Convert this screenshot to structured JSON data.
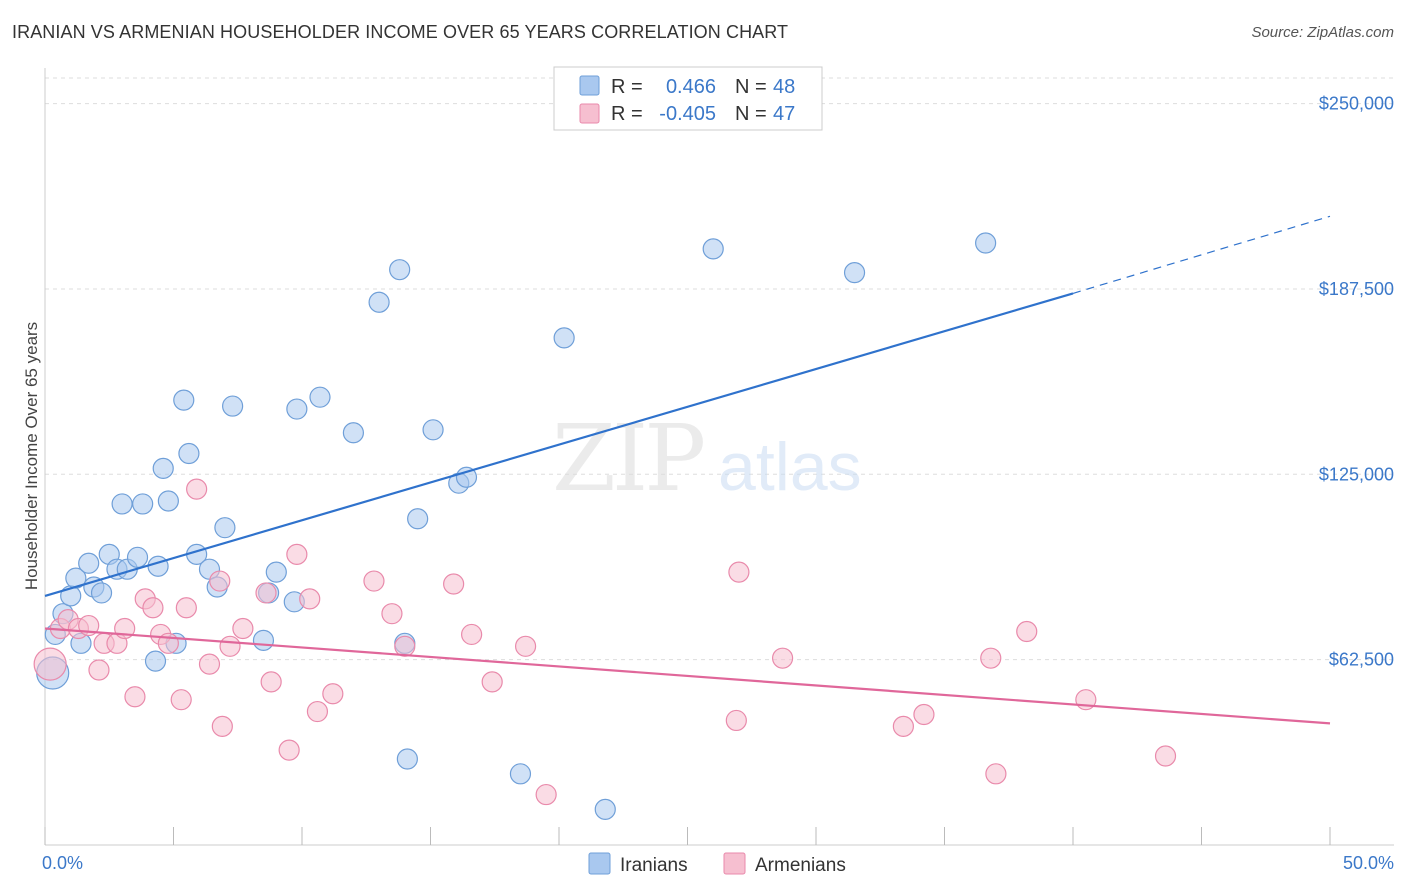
{
  "header": {
    "title": "IRANIAN VS ARMENIAN HOUSEHOLDER INCOME OVER 65 YEARS CORRELATION CHART",
    "source": "Source: ZipAtlas.com"
  },
  "watermark": {
    "zip": "ZIP",
    "atlas": "atlas"
  },
  "colors": {
    "iranian_fill": "#a9c8ef",
    "iranian_stroke": "#6f9fd8",
    "iranian_line": "#2f72cc",
    "armenian_fill": "#f6bfd0",
    "armenian_stroke": "#e98aab",
    "armenian_line": "#e0679a",
    "grid": "#dddddd",
    "tick_label": "#3b78c9"
  },
  "legend": {
    "rows": [
      {
        "r_label": "R =",
        "r_value": "0.466",
        "n_label": "N =",
        "n_value": "48"
      },
      {
        "r_label": "R =",
        "r_value": "-0.405",
        "n_label": "N =",
        "n_value": "47"
      }
    ]
  },
  "bottom_legend": {
    "items": [
      "Iranians",
      "Armenians"
    ]
  },
  "chart_data": {
    "type": "scatter",
    "title": "IRANIAN VS ARMENIAN HOUSEHOLDER INCOME OVER 65 YEARS CORRELATION CHART",
    "xlabel": "",
    "ylabel": "Householder Income Over 65 years",
    "xlim": [
      0,
      50
    ],
    "ylim": [
      0,
      262000
    ],
    "x_tick_labels": [
      "0.0%",
      "50.0%"
    ],
    "y_ticks": [
      62500,
      125000,
      187500,
      250000
    ],
    "y_tick_labels": [
      "$62,500",
      "$125,000",
      "$187,500",
      "$250,000"
    ],
    "grid": true,
    "legend_position": "top-center",
    "series": [
      {
        "name": "Iranians",
        "r": 0.466,
        "n": 48,
        "trend": {
          "x0": 0,
          "y0": 84000,
          "x1": 40,
          "y1": 186000,
          "dashed_to_x": 50,
          "dashed_to_y": 212000
        },
        "points": [
          [
            0.3,
            58000,
            16
          ],
          [
            0.4,
            71000,
            10
          ],
          [
            0.7,
            78000,
            10
          ],
          [
            1.0,
            84000,
            10
          ],
          [
            1.2,
            90000,
            10
          ],
          [
            1.4,
            68000,
            10
          ],
          [
            1.7,
            95000,
            10
          ],
          [
            1.9,
            87000,
            10
          ],
          [
            2.2,
            85000,
            10
          ],
          [
            2.5,
            98000,
            10
          ],
          [
            2.8,
            93000,
            10
          ],
          [
            3.0,
            115000,
            10
          ],
          [
            3.2,
            93000,
            10
          ],
          [
            3.6,
            97000,
            10
          ],
          [
            3.8,
            115000,
            10
          ],
          [
            4.3,
            62000,
            10
          ],
          [
            4.4,
            94000,
            10
          ],
          [
            4.6,
            127000,
            10
          ],
          [
            4.8,
            116000,
            10
          ],
          [
            5.1,
            68000,
            10
          ],
          [
            5.4,
            150000,
            10
          ],
          [
            5.6,
            132000,
            10
          ],
          [
            5.9,
            98000,
            10
          ],
          [
            6.4,
            93000,
            10
          ],
          [
            6.7,
            87000,
            10
          ],
          [
            7.0,
            107000,
            10
          ],
          [
            7.3,
            148000,
            10
          ],
          [
            8.5,
            69000,
            10
          ],
          [
            8.7,
            85000,
            10
          ],
          [
            9.0,
            92000,
            10
          ],
          [
            9.7,
            82000,
            10
          ],
          [
            9.8,
            147000,
            10
          ],
          [
            10.7,
            151000,
            10
          ],
          [
            12.0,
            139000,
            10
          ],
          [
            13.0,
            183000,
            10
          ],
          [
            13.8,
            194000,
            10
          ],
          [
            14.1,
            29000,
            10
          ],
          [
            14.0,
            68000,
            10
          ],
          [
            14.5,
            110000,
            10
          ],
          [
            15.1,
            140000,
            10
          ],
          [
            16.1,
            122000,
            10
          ],
          [
            16.4,
            124000,
            10
          ],
          [
            18.5,
            24000,
            10
          ],
          [
            20.2,
            171000,
            10
          ],
          [
            21.8,
            12000,
            10
          ],
          [
            26.0,
            201000,
            10
          ],
          [
            31.5,
            193000,
            10
          ],
          [
            36.6,
            203000,
            10
          ]
        ]
      },
      {
        "name": "Armenians",
        "r": -0.405,
        "n": 47,
        "trend": {
          "x0": 0,
          "y0": 73000,
          "x1": 50,
          "y1": 41000
        },
        "points": [
          [
            0.2,
            61000,
            16
          ],
          [
            0.6,
            73000,
            10
          ],
          [
            0.9,
            76000,
            10
          ],
          [
            1.3,
            73000,
            10
          ],
          [
            1.7,
            74000,
            10
          ],
          [
            2.1,
            59000,
            10
          ],
          [
            2.3,
            68000,
            10
          ],
          [
            2.8,
            68000,
            10
          ],
          [
            3.1,
            73000,
            10
          ],
          [
            3.5,
            50000,
            10
          ],
          [
            3.9,
            83000,
            10
          ],
          [
            4.2,
            80000,
            10
          ],
          [
            4.5,
            71000,
            10
          ],
          [
            4.8,
            68000,
            10
          ],
          [
            5.3,
            49000,
            10
          ],
          [
            5.5,
            80000,
            10
          ],
          [
            5.9,
            120000,
            10
          ],
          [
            6.4,
            61000,
            10
          ],
          [
            6.8,
            89000,
            10
          ],
          [
            6.9,
            40000,
            10
          ],
          [
            7.2,
            67000,
            10
          ],
          [
            7.7,
            73000,
            10
          ],
          [
            8.6,
            85000,
            10
          ],
          [
            8.8,
            55000,
            10
          ],
          [
            9.5,
            32000,
            10
          ],
          [
            9.8,
            98000,
            10
          ],
          [
            10.3,
            83000,
            10
          ],
          [
            10.6,
            45000,
            10
          ],
          [
            11.2,
            51000,
            10
          ],
          [
            12.8,
            89000,
            10
          ],
          [
            13.5,
            78000,
            10
          ],
          [
            14.0,
            67000,
            10
          ],
          [
            15.9,
            88000,
            10
          ],
          [
            16.6,
            71000,
            10
          ],
          [
            17.4,
            55000,
            10
          ],
          [
            18.7,
            67000,
            10
          ],
          [
            19.5,
            17000,
            10
          ],
          [
            26.9,
            42000,
            10
          ],
          [
            27.0,
            92000,
            10
          ],
          [
            28.7,
            63000,
            10
          ],
          [
            33.4,
            40000,
            10
          ],
          [
            34.2,
            44000,
            10
          ],
          [
            36.8,
            63000,
            10
          ],
          [
            37.0,
            24000,
            10
          ],
          [
            38.2,
            72000,
            10
          ],
          [
            40.5,
            49000,
            10
          ],
          [
            43.6,
            30000,
            10
          ]
        ]
      }
    ]
  }
}
